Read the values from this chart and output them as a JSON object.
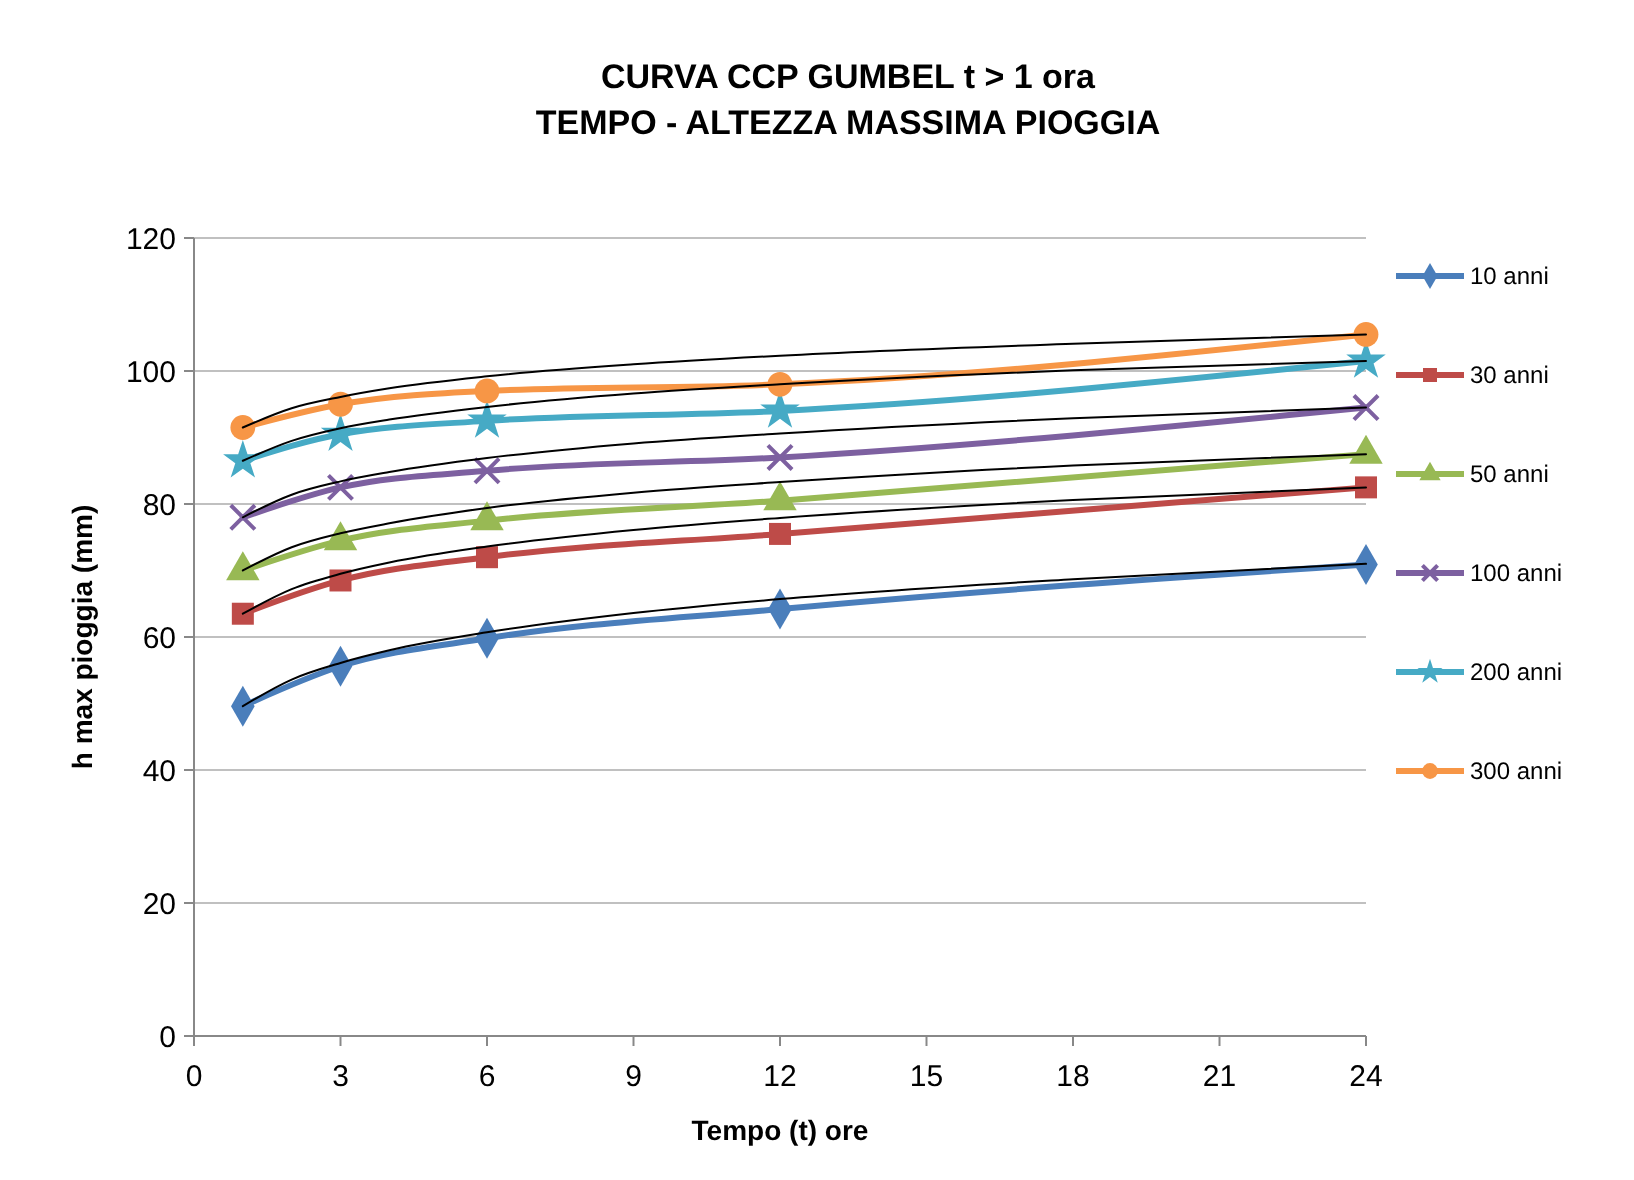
{
  "chart_data": {
    "type": "line",
    "title": "CURVA CCP GUMBEL  t > 1 ora",
    "subtitle": "TEMPO - ALTEZZA MASSIMA PIOGGIA",
    "xlabel": "Tempo (t) ore",
    "ylabel": "h max pioggia (mm)",
    "x": [
      1,
      3,
      6,
      12,
      24
    ],
    "xlim": [
      0,
      24
    ],
    "xticks": [
      0,
      3,
      6,
      9,
      12,
      15,
      18,
      21,
      24
    ],
    "ylim": [
      0,
      120
    ],
    "yticks": [
      0,
      20,
      40,
      60,
      80,
      100,
      120
    ],
    "grid": "y",
    "legend": "right",
    "line_style": "solid",
    "series": [
      {
        "name": "10 anni",
        "color": "#4a7ebb",
        "marker": "diamond",
        "values": [
          49.6,
          55.6,
          59.8,
          64.2,
          70.9
        ]
      },
      {
        "name": "30 anni",
        "color": "#be4b48",
        "marker": "square",
        "values": [
          63.5,
          68.5,
          72,
          75.5,
          82.5
        ]
      },
      {
        "name": "50 anni",
        "color": "#98b954",
        "marker": "triangle",
        "values": [
          70,
          74.5,
          77.5,
          80.5,
          87.5
        ]
      },
      {
        "name": "100 anni",
        "color": "#7d60a0",
        "marker": "cross",
        "values": [
          78,
          82.5,
          85,
          87,
          94.5
        ]
      },
      {
        "name": "200 anni",
        "color": "#46aac5",
        "marker": "star",
        "values": [
          86.5,
          90.5,
          92.5,
          94,
          101.5
        ]
      },
      {
        "name": "300 anni",
        "color": "#f79646",
        "marker": "circle",
        "values": [
          91.5,
          95,
          97,
          98,
          105.5
        ]
      },
      {
        "color": "#000000",
        "marker": "none",
        "x": [
          1,
          2,
          3,
          4,
          6,
          9,
          12,
          18,
          24
        ],
        "values": [
          49.6,
          53.6,
          56.1,
          58.0,
          60.7,
          63.6,
          65.7,
          68.7,
          71.0
        ]
      },
      {
        "color": "#000000",
        "marker": "none",
        "x": [
          1,
          2,
          3,
          4,
          6,
          9,
          12,
          18,
          24
        ],
        "values": [
          63.5,
          67.2,
          69.5,
          71.2,
          73.6,
          76.1,
          77.9,
          80.6,
          82.5
        ]
      },
      {
        "color": "#000000",
        "marker": "none",
        "x": [
          1,
          2,
          3,
          4,
          6,
          9,
          12,
          18,
          24
        ],
        "values": [
          70,
          73.5,
          75.6,
          77.1,
          79.4,
          81.7,
          83.3,
          85.8,
          87.5
        ]
      },
      {
        "color": "#000000",
        "marker": "none",
        "x": [
          1,
          2,
          3,
          4,
          6,
          9,
          12,
          18,
          24
        ],
        "values": [
          78,
          81.4,
          83.4,
          84.8,
          86.9,
          89.1,
          90.6,
          92.9,
          94.5
        ]
      },
      {
        "color": "#000000",
        "marker": "none",
        "x": [
          1,
          2,
          3,
          4,
          6,
          9,
          12,
          18,
          24
        ],
        "values": [
          86.5,
          89.5,
          91.4,
          92.7,
          94.6,
          96.6,
          98.0,
          100.1,
          101.5
        ]
      },
      {
        "color": "#000000",
        "marker": "none",
        "x": [
          1,
          2,
          3,
          4,
          6,
          9,
          12,
          18,
          24
        ],
        "values": [
          91.5,
          94.4,
          96.1,
          97.4,
          99.2,
          101.0,
          102.3,
          104.1,
          105.5
        ]
      }
    ]
  }
}
